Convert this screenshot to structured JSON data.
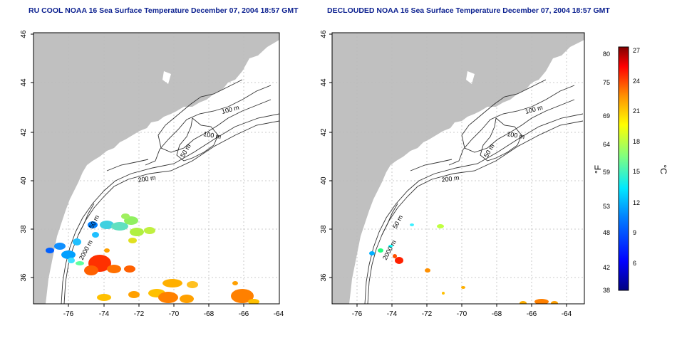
{
  "left_panel": {
    "title": "RU COOL NOAA 16 Sea Surface Temperature December 07, 2004 18:57 GMT",
    "contour_labels": [
      "100 m",
      "100 m",
      "50 m",
      "200 m",
      "50 m",
      "2000 m"
    ]
  },
  "right_panel": {
    "title": "DECLOUDED NOAA 16 Sea Surface Temperature December 07, 2004 18:57 GMT",
    "contour_labels": [
      "100 m",
      "100 m",
      "50 m",
      "200 m",
      "50 m",
      "2000 m"
    ]
  },
  "axes": {
    "x_ticks": [
      "-76",
      "-74",
      "-72",
      "-70",
      "-68",
      "-66",
      "-64"
    ],
    "y_ticks": [
      "36",
      "38",
      "40",
      "42",
      "44",
      "46"
    ]
  },
  "colorbar": {
    "fahrenheit_ticks": [
      "80",
      "75",
      "69",
      "64",
      "59",
      "53",
      "48",
      "42",
      "38"
    ],
    "celsius_ticks": [
      "27",
      "24",
      "21",
      "18",
      "15",
      "12",
      "9",
      "6"
    ],
    "left_unit": "°F",
    "right_unit": "°C",
    "colors": [
      "#000080",
      "#0000ff",
      "#0080ff",
      "#00ffff",
      "#80ff80",
      "#ffff00",
      "#ff8000",
      "#ff0000",
      "#800000"
    ]
  }
}
